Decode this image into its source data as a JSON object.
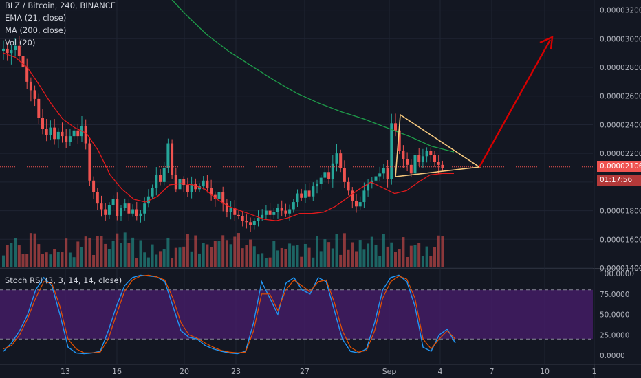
{
  "header": {
    "symbol_line": "BLZ / Bitcoin, 240, BINANCE",
    "indicators": [
      "EMA (21, close)",
      "MA (200, close)",
      "Vol (20)"
    ]
  },
  "badges": {
    "last_price": "0.00002106",
    "countdown": "01:17:56"
  },
  "oscillator": {
    "label": "Stoch RSI (3, 3, 14, 14, close)"
  },
  "colors": {
    "up": "#26a69a",
    "down": "#ef5350",
    "ema": "#e31a1c",
    "ma": "#1e9e4a",
    "band_fill": "#4a1e6e",
    "triangle": "#f7c97e",
    "arrow": "#d50000",
    "k_line": "#2196f3",
    "d_line": "#e65100"
  },
  "chart_data": [
    {
      "type": "line",
      "title": "BLZ / Bitcoin, 240, BINANCE",
      "subtype": "candlestick",
      "y_axis_ticks": [
        "0.00003200",
        "0.00003000",
        "0.00002800",
        "0.00002600",
        "0.00002400",
        "0.00002200",
        "0.00002000",
        "0.00001800",
        "0.00001600",
        "0.00001400"
      ],
      "x_axis_ticks": [
        "13",
        "16",
        "20",
        "23",
        "27",
        "Sep",
        "4",
        "7",
        "10",
        "1"
      ],
      "ylim": [
        1.4e-05,
        3.27e-05
      ],
      "last_price": 2.106e-05,
      "candles_close_approx": [
        2.93e-05,
        2.9e-05,
        2.92e-05,
        2.95e-05,
        2.88e-05,
        2.8e-05,
        2.7e-05,
        2.64e-05,
        2.58e-05,
        2.45e-05,
        2.37e-05,
        2.33e-05,
        2.38e-05,
        2.3e-05,
        2.35e-05,
        2.32e-05,
        2.28e-05,
        2.32e-05,
        2.36e-05,
        2.32e-05,
        2.39e-05,
        2.27e-05,
        2.01e-05,
        1.93e-05,
        1.85e-05,
        1.81e-05,
        1.77e-05,
        1.84e-05,
        1.88e-05,
        1.76e-05,
        1.82e-05,
        1.85e-05,
        1.78e-05,
        1.81e-05,
        1.76e-05,
        1.78e-05,
        1.85e-05,
        1.9e-05,
        1.96e-05,
        2.05e-05,
        2e-05,
        2.1e-05,
        2.27e-05,
        2.05e-05,
        1.95e-05,
        2.02e-05,
        1.98e-05,
        1.93e-05,
        1.99e-05,
        1.95e-05,
        1.97e-05,
        2.01e-05,
        1.96e-05,
        1.91e-05,
        1.88e-05,
        1.93e-05,
        1.85e-05,
        1.79e-05,
        1.82e-05,
        1.77e-05,
        1.76e-05,
        1.73e-05,
        1.72e-05,
        1.7e-05,
        1.73e-05,
        1.75e-05,
        1.77e-05,
        1.8e-05,
        1.77e-05,
        1.79e-05,
        1.82e-05,
        1.8e-05,
        1.78e-05,
        1.81e-05,
        1.86e-05,
        1.92e-05,
        1.89e-05,
        1.94e-05,
        1.9e-05,
        1.97e-05,
        1.99e-05,
        2.03e-05,
        2.07e-05,
        2.02e-05,
        2.13e-05,
        2.2e-05,
        2.1e-05,
        2e-05,
        1.94e-05,
        1.87e-05,
        1.83e-05,
        1.86e-05,
        1.94e-05,
        1.99e-05,
        2.01e-05,
        2.04e-05,
        2.06e-05,
        2.1e-05,
        2.02e-05,
        2.41e-05,
        2.36e-05,
        2.22e-05,
        2.16e-05,
        2.12e-05,
        2.06e-05,
        2.19e-05,
        2.14e-05,
        2.18e-05,
        2.22e-05,
        2.19e-05,
        2.14e-05,
        2.12e-05,
        2.1e-05
      ],
      "ema21_approx": [
        2.9e-05,
        2.87e-05,
        2.8e-05,
        2.68e-05,
        2.55e-05,
        2.44e-05,
        2.38e-05,
        2.34e-05,
        2.22e-05,
        2.05e-05,
        1.95e-05,
        1.88e-05,
        1.86e-05,
        1.9e-05,
        1.98e-05,
        1.99e-05,
        1.98e-05,
        1.95e-05,
        1.88e-05,
        1.83e-05,
        1.8e-05,
        1.77e-05,
        1.74e-05,
        1.73e-05,
        1.75e-05,
        1.78e-05,
        1.78e-05,
        1.79e-05,
        1.83e-05,
        1.89e-05,
        1.95e-05,
        2e-05,
        1.96e-05,
        1.92e-05,
        1.94e-05,
        2e-05,
        2.05e-05,
        2.06e-05,
        2.06e-05
      ],
      "ma200_approx": [
        3.35e-05,
        3.18e-05,
        3.03e-05,
        2.91e-05,
        2.81e-05,
        2.71e-05,
        2.62e-05,
        2.55e-05,
        2.49e-05,
        2.44e-05,
        2.38e-05,
        2.32e-05,
        2.25e-05,
        2.21e-05
      ],
      "annotations": [
        "symmetrical triangle",
        "upward arrow projection"
      ]
    },
    {
      "type": "line",
      "title": "Stoch RSI (3, 3, 14, 14, close)",
      "y_axis_ticks": [
        "100.0000",
        "75.0000",
        "50.0000",
        "25.0000",
        "0.0000"
      ],
      "ylim": [
        0,
        100
      ],
      "band": [
        20,
        80
      ],
      "k_approx": [
        5,
        15,
        30,
        50,
        80,
        95,
        85,
        50,
        10,
        3,
        2,
        3,
        5,
        30,
        60,
        85,
        95,
        98,
        97,
        96,
        90,
        60,
        30,
        22,
        20,
        12,
        8,
        5,
        3,
        2,
        5,
        40,
        90,
        70,
        50,
        88,
        95,
        80,
        75,
        95,
        90,
        55,
        20,
        5,
        3,
        8,
        40,
        80,
        95,
        98,
        90,
        60,
        10,
        5,
        25,
        32,
        15
      ],
      "d_approx": [
        8,
        12,
        25,
        45,
        70,
        90,
        88,
        60,
        20,
        8,
        3,
        3,
        4,
        20,
        50,
        78,
        92,
        97,
        98,
        96,
        92,
        70,
        40,
        25,
        21,
        15,
        10,
        6,
        4,
        3,
        4,
        30,
        75,
        75,
        55,
        80,
        92,
        85,
        78,
        90,
        92,
        65,
        30,
        10,
        4,
        6,
        30,
        70,
        90,
        97,
        93,
        70,
        20,
        8,
        20,
        30,
        20
      ]
    }
  ]
}
